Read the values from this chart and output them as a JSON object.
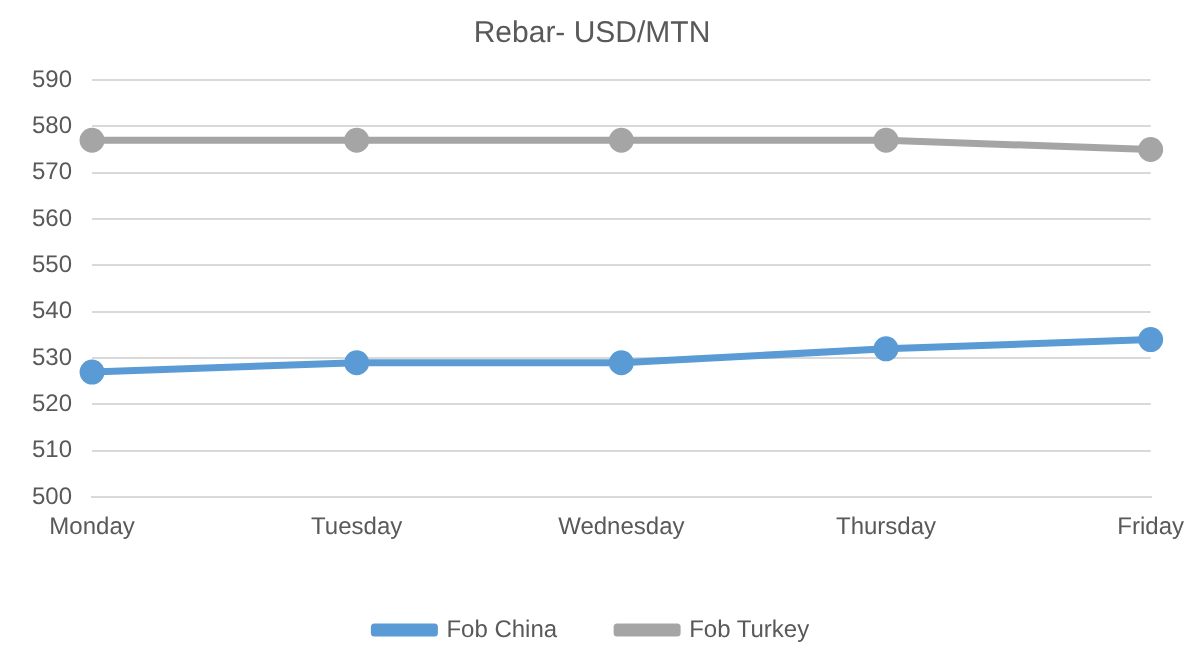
{
  "chart_data": {
    "type": "line",
    "title": "Rebar- USD/MTN",
    "categories": [
      "Monday",
      "Tuesday",
      "Wednesday",
      "Thursday",
      "Friday"
    ],
    "series": [
      {
        "name": "Fob China",
        "color": "#5b9bd5",
        "values": [
          527,
          529,
          529,
          532,
          534
        ]
      },
      {
        "name": "Fob Turkey",
        "color": "#a5a5a5",
        "values": [
          577,
          577,
          577,
          577,
          575
        ]
      }
    ],
    "ylim": [
      500,
      590
    ],
    "yticks": [
      500,
      510,
      520,
      530,
      540,
      550,
      560,
      570,
      580,
      590
    ],
    "grid": "y",
    "legend": "bottom",
    "marker": "circle",
    "line_style": "solid"
  }
}
